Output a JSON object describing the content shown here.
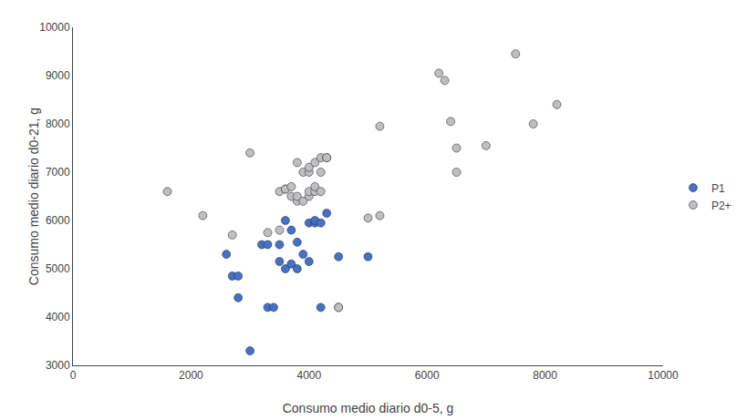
{
  "chart_data": {
    "type": "scatter",
    "xlabel": "Consumo medio diario d0-5, g",
    "ylabel": "Consumo medio diario d0-21, g",
    "series": [
      {
        "name": "P2+",
        "color": "#BFBFBF",
        "x": [
          1600,
          2200,
          2700,
          3000,
          3300,
          3500,
          3500,
          3600,
          3600,
          3700,
          3700,
          3800,
          3800,
          3800,
          3900,
          3900,
          4000,
          4000,
          4000,
          4000,
          4100,
          4100,
          4100,
          4200,
          4200,
          4200,
          4300,
          4300,
          4500,
          4500,
          5000,
          5200,
          5200,
          6200,
          6300,
          6400,
          6500,
          6500,
          7000,
          7500,
          7800,
          8200
        ],
        "values": [
          6600,
          6100,
          5700,
          7400,
          5750,
          5800,
          6600,
          6650,
          6650,
          6500,
          6700,
          6400,
          6500,
          7200,
          6400,
          7000,
          6500,
          6600,
          7000,
          7100,
          6600,
          6700,
          7200,
          7000,
          6600,
          7300,
          7300,
          7300,
          4200,
          4200,
          6050,
          7950,
          6100,
          9050,
          8900,
          8050,
          7000,
          7500,
          7550,
          9450,
          8000,
          8400
        ]
      },
      {
        "name": "P1",
        "color": "#4472C4",
        "x": [
          2600,
          2700,
          2800,
          2800,
          3000,
          3200,
          3300,
          3300,
          3400,
          3500,
          3500,
          3600,
          3600,
          3700,
          3700,
          3800,
          3800,
          3900,
          4000,
          4000,
          4100,
          4100,
          4200,
          4200,
          4300,
          4500,
          5000
        ],
        "values": [
          5300,
          4850,
          4400,
          4850,
          3300,
          5500,
          4200,
          5500,
          4200,
          5500,
          5150,
          5000,
          6000,
          5100,
          5800,
          5000,
          5550,
          5300,
          5150,
          5950,
          5950,
          6000,
          4200,
          5950,
          6150,
          5250,
          5250
        ]
      }
    ],
    "xlim": [
      0,
      10000
    ],
    "ylim": [
      3000,
      10000
    ],
    "xticks": [
      0,
      2000,
      4000,
      6000,
      8000,
      10000
    ],
    "yticks": [
      3000,
      4000,
      5000,
      6000,
      7000,
      8000,
      9000,
      10000
    ],
    "grid": false,
    "legend": "right",
    "marker": "circle"
  }
}
